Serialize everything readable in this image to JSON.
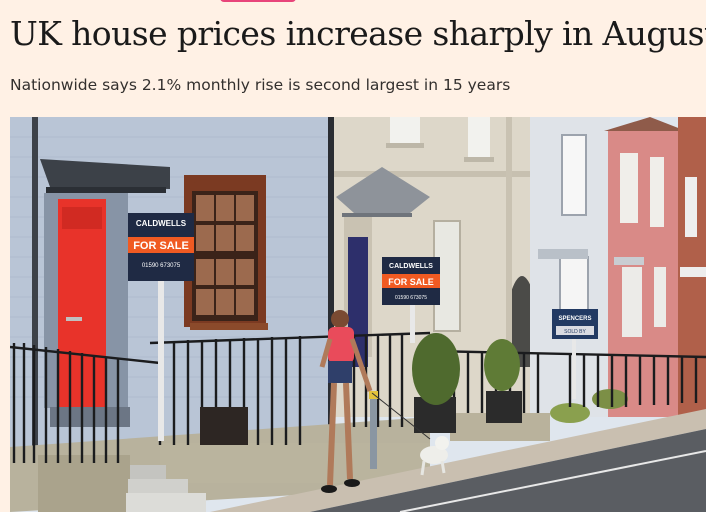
{
  "article": {
    "headline": "UK house prices increase sharply in August",
    "standfirst": "Nationwide says 2.1% monthly rise is second largest in 15 years"
  },
  "photo": {
    "sign_left": {
      "brand": "CALDWELLS",
      "label": "FOR SALE",
      "phone": "01590 673075"
    },
    "sign_middle": {
      "brand": "CALDWELLS",
      "label": "FOR SALE",
      "phone": "01590 673075"
    },
    "sign_right": {
      "brand": "SPENCERS",
      "label": "SOLD BY"
    }
  },
  "colors": {
    "page_bg": "#fff1e5",
    "tag_pink": "#e8447a",
    "door_red": "#e8332a",
    "sign_orange": "#f05a22"
  }
}
